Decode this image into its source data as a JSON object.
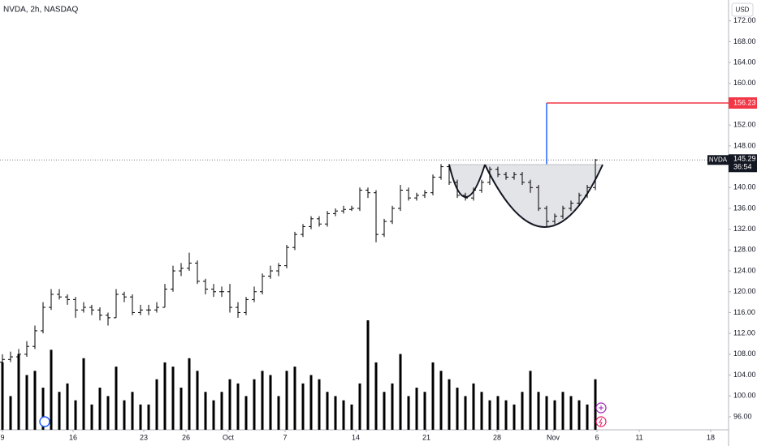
{
  "chart_data": {
    "type": "ohlc",
    "title": "NVDA, 2h, NASDAQ",
    "currency": "USD",
    "symbol": "NVDA",
    "last_price": 145.29,
    "last_price_label": "145.29",
    "countdown": "36:54",
    "target_price": 156.23,
    "target_price_label": "156.23",
    "ylim": [
      93.5,
      176
    ],
    "yticks": [
      {
        "value": 96,
        "label": "96.00"
      },
      {
        "value": 100,
        "label": "100.00"
      },
      {
        "value": 104,
        "label": "104.00"
      },
      {
        "value": 108,
        "label": "108.00"
      },
      {
        "value": 112,
        "label": "112.00"
      },
      {
        "value": 116,
        "label": "116.00"
      },
      {
        "value": 120,
        "label": "120.00"
      },
      {
        "value": 124,
        "label": "124.00"
      },
      {
        "value": 128,
        "label": "128.00"
      },
      {
        "value": 132,
        "label": "132.00"
      },
      {
        "value": 136,
        "label": "136.00"
      },
      {
        "value": 140,
        "label": "140.00"
      },
      {
        "value": 148,
        "label": "148.00"
      },
      {
        "value": 152,
        "label": "152.00"
      },
      {
        "value": 160,
        "label": "160.00"
      },
      {
        "value": 164,
        "label": "164.00"
      },
      {
        "value": 168,
        "label": "168.00"
      },
      {
        "value": 172,
        "label": "172.00"
      }
    ],
    "xticks": [
      {
        "value": 0,
        "label": "9"
      },
      {
        "value": 8.7,
        "label": "16"
      },
      {
        "value": 17.4,
        "label": "23"
      },
      {
        "value": 22.6,
        "label": "26"
      },
      {
        "value": 27.8,
        "label": "Oct"
      },
      {
        "value": 34.8,
        "label": "7"
      },
      {
        "value": 43.5,
        "label": "14"
      },
      {
        "value": 52.2,
        "label": "21"
      },
      {
        "value": 60.9,
        "label": "28"
      },
      {
        "value": 67.8,
        "label": "Nov"
      },
      {
        "value": 73.2,
        "label": "6"
      },
      {
        "value": 78.4,
        "label": "11"
      },
      {
        "value": 87.2,
        "label": "18"
      }
    ],
    "color": "#000000",
    "ohlc": [
      [
        106.5,
        108,
        105.5,
        107
      ],
      [
        107,
        108.5,
        106.5,
        107.5
      ],
      [
        107.5,
        109,
        107,
        108
      ],
      [
        108,
        110.5,
        107.5,
        109.5
      ],
      [
        109.5,
        113.5,
        109,
        112.5
      ],
      [
        112.5,
        118,
        112,
        117
      ],
      [
        117,
        120.5,
        116.5,
        119.5
      ],
      [
        119.5,
        120.5,
        118.5,
        119
      ],
      [
        119,
        119.5,
        117.5,
        118.5
      ],
      [
        118.5,
        119,
        115,
        116.5
      ],
      [
        116.5,
        118,
        116,
        117
      ],
      [
        117,
        117.5,
        115.5,
        116.5
      ],
      [
        116.5,
        117,
        114.5,
        115.5
      ],
      [
        115.5,
        116,
        113.5,
        115
      ],
      [
        115,
        120.5,
        115,
        119.5
      ],
      [
        119.5,
        120,
        118,
        119
      ],
      [
        119,
        119.5,
        115.5,
        116
      ],
      [
        116,
        117.5,
        115.5,
        116.5
      ],
      [
        116.5,
        117.5,
        115.5,
        116.5
      ],
      [
        116.5,
        118,
        116,
        117
      ],
      [
        117,
        121.5,
        117,
        120.5
      ],
      [
        120.5,
        125,
        120,
        124
      ],
      [
        124,
        125.5,
        123,
        124.5
      ],
      [
        124.5,
        127.5,
        124,
        125.5
      ],
      [
        125.5,
        126,
        121.5,
        122
      ],
      [
        122,
        122.5,
        119.5,
        120.5
      ],
      [
        120.5,
        121.5,
        119,
        120
      ],
      [
        120,
        121,
        119,
        120
      ],
      [
        120,
        121.5,
        116,
        117
      ],
      [
        117,
        118,
        115,
        116
      ],
      [
        116,
        119,
        115.5,
        118.5
      ],
      [
        118.5,
        121,
        118,
        120
      ],
      [
        120,
        123.5,
        119.5,
        123
      ],
      [
        123,
        125,
        122.5,
        124
      ],
      [
        124,
        125.5,
        123,
        125
      ],
      [
        125,
        129,
        124.5,
        128.5
      ],
      [
        128.5,
        131.5,
        128,
        131
      ],
      [
        131,
        133,
        130.5,
        132.5
      ],
      [
        132.5,
        134.5,
        132,
        134
      ],
      [
        134,
        134.5,
        132.5,
        133
      ],
      [
        133,
        135.5,
        132.5,
        135
      ],
      [
        135,
        136,
        134.5,
        135.5
      ],
      [
        135.5,
        136.5,
        135,
        135.8
      ],
      [
        135.8,
        136.5,
        135.5,
        136
      ],
      [
        136,
        140,
        135.5,
        139.5
      ],
      [
        139.5,
        140,
        138,
        139
      ],
      [
        139,
        139.5,
        129.5,
        131
      ],
      [
        131,
        134,
        130.5,
        133.5
      ],
      [
        133.5,
        136.5,
        133,
        136
      ],
      [
        136,
        140.5,
        135.5,
        139.5
      ],
      [
        139.5,
        140,
        137.5,
        138
      ],
      [
        138,
        139,
        137.5,
        138.5
      ],
      [
        138.5,
        139.5,
        138,
        139
      ],
      [
        139,
        142.5,
        138.5,
        142
      ],
      [
        142,
        144.5,
        141.5,
        144
      ],
      [
        144,
        144.5,
        140.5,
        141
      ],
      [
        141,
        141.5,
        138,
        138.5
      ],
      [
        138.5,
        139,
        137.5,
        138
      ],
      [
        138,
        140,
        137.5,
        139.5
      ],
      [
        139.5,
        141.5,
        139,
        141
      ],
      [
        141,
        144,
        140.5,
        143.5
      ],
      [
        143.5,
        144,
        142,
        142.5
      ],
      [
        142.5,
        143,
        141.5,
        142
      ],
      [
        142,
        143,
        141.5,
        142.5
      ],
      [
        142.5,
        143,
        140.5,
        141
      ],
      [
        141,
        141.5,
        139,
        140
      ],
      [
        140,
        140.5,
        135.5,
        136
      ],
      [
        136,
        136.5,
        132.5,
        133.5
      ],
      [
        133.5,
        135,
        133,
        134.5
      ],
      [
        134.5,
        136.5,
        134,
        136
      ],
      [
        136,
        137.5,
        135.5,
        137
      ],
      [
        137,
        139,
        136.5,
        138.5
      ],
      [
        138.5,
        140.5,
        138,
        140
      ],
      [
        140,
        145.5,
        139.5,
        145.29
      ]
    ],
    "volume": [
      80,
      40,
      90,
      65,
      70,
      50,
      95,
      45,
      55,
      35,
      85,
      30,
      50,
      40,
      75,
      35,
      45,
      30,
      30,
      60,
      80,
      75,
      50,
      85,
      70,
      45,
      35,
      45,
      60,
      55,
      40,
      60,
      70,
      65,
      40,
      70,
      75,
      55,
      65,
      60,
      45,
      40,
      35,
      30,
      55,
      130,
      80,
      45,
      55,
      90,
      40,
      50,
      45,
      80,
      70,
      60,
      50,
      40,
      55,
      45,
      35,
      40,
      35,
      30,
      45,
      70,
      45,
      40,
      35,
      45,
      40,
      35,
      30,
      60
    ]
  }
}
